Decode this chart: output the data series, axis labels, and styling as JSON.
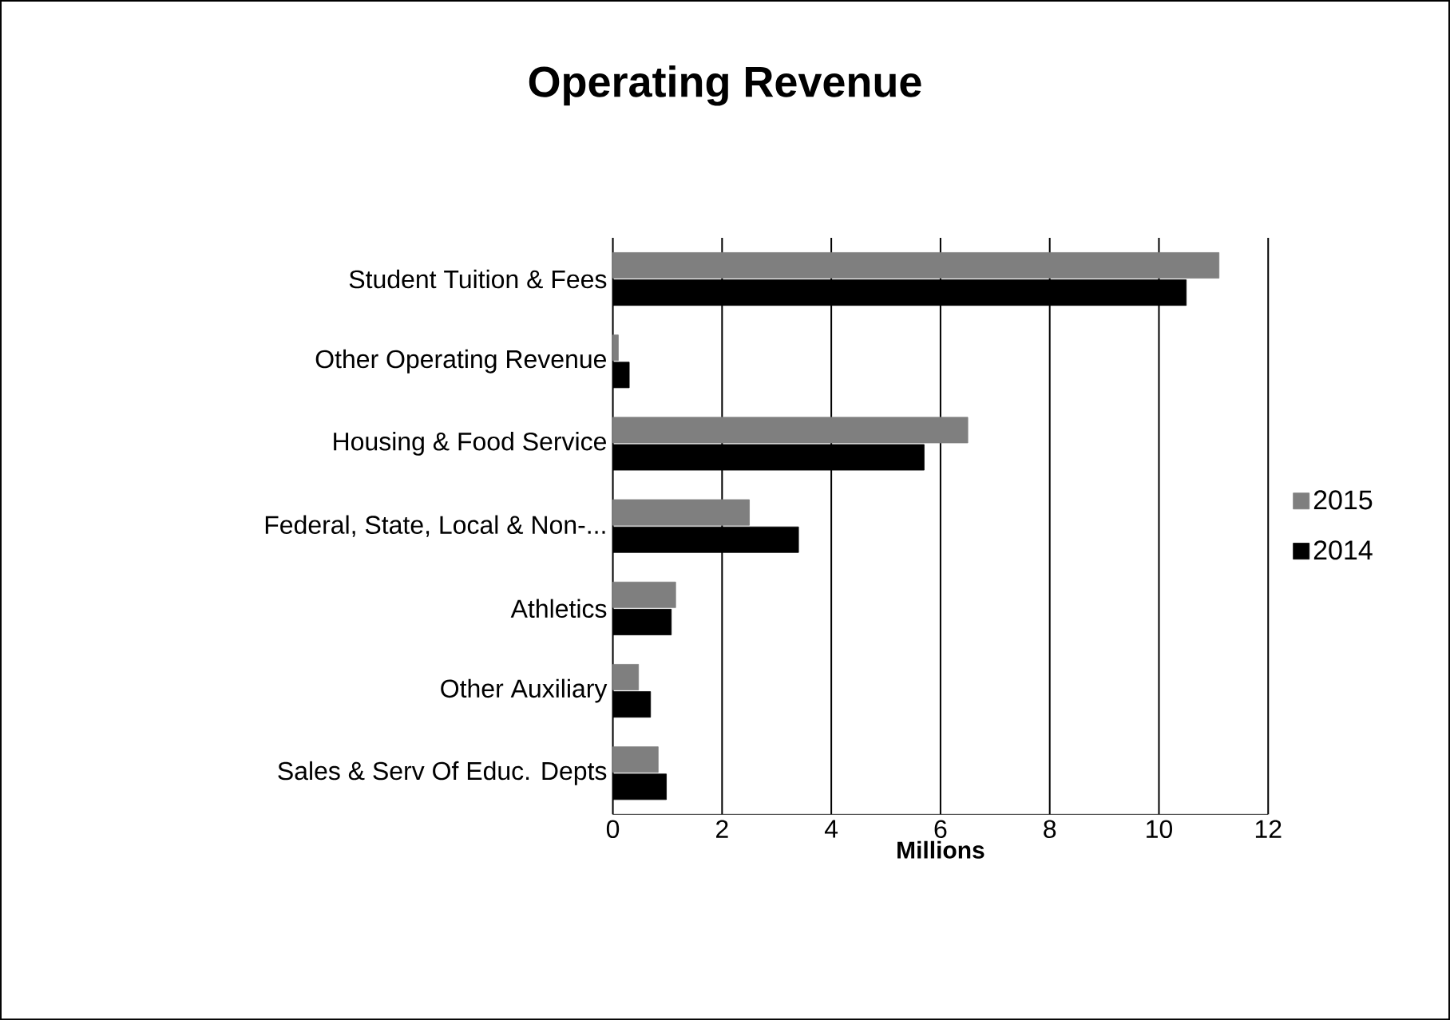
{
  "chart_data": {
    "type": "bar",
    "orientation": "horizontal",
    "title": "Operating Revenue",
    "xlabel": "Millions",
    "categories": [
      "Student Tuition & Fees",
      "Other Operating Revenue",
      "Housing & Food Service",
      "Federal, State, Local & Non-...",
      "Athletics",
      "Other Auxiliary",
      "Sales & Serv Of Educ. Depts"
    ],
    "series": [
      {
        "name": "2015",
        "color": "#7f7f7f",
        "values": [
          11.1,
          0.1,
          6.5,
          2.5,
          1.15,
          0.47,
          0.83
        ]
      },
      {
        "name": "2014",
        "color": "#000000",
        "values": [
          10.5,
          0.3,
          5.7,
          3.4,
          1.07,
          0.69,
          0.98
        ]
      }
    ],
    "xlim": [
      0,
      12
    ],
    "xticks": [
      0,
      2,
      4,
      6,
      8,
      10,
      12
    ],
    "grid": "x",
    "legend": "right"
  }
}
